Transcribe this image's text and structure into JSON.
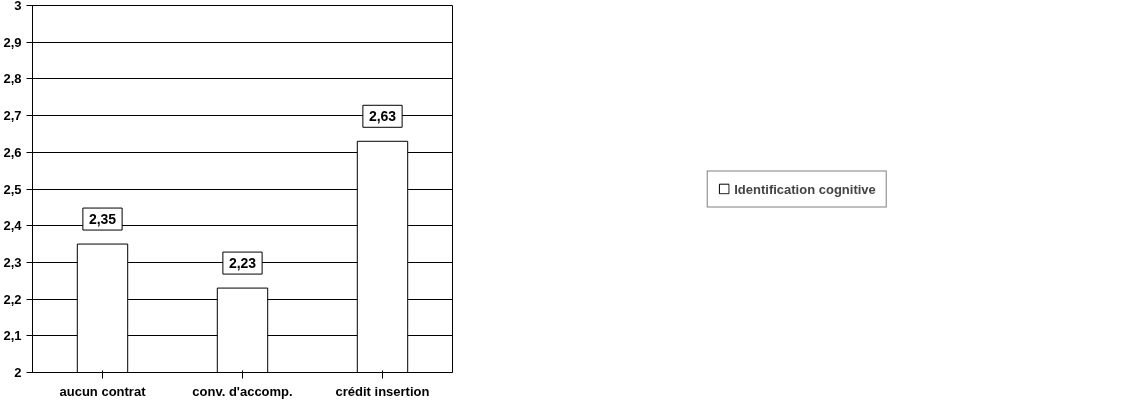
{
  "chart_data": {
    "type": "bar",
    "categories": [
      "aucun contrat",
      "conv. d'accomp.",
      "crédit insertion"
    ],
    "series": [
      {
        "name": "Identification cognitive",
        "color": "#ffffff",
        "values": [
          2.35,
          2.23,
          2.63
        ],
        "value_labels": [
          "2,35",
          "2,23",
          "2,63"
        ]
      }
    ],
    "ylim": [
      2,
      3
    ],
    "yticks": [
      2,
      {
        "value": 2.1,
        "label": "2,1"
      },
      {
        "value": 2.2,
        "label": "2,2"
      },
      {
        "value": 2.3,
        "label": "2,3"
      },
      {
        "value": 2.4,
        "label": "2,4"
      },
      {
        "value": 2.5,
        "label": "2,5"
      },
      {
        "value": 2.6,
        "label": "2,6"
      },
      {
        "value": 2.7,
        "label": "2,7"
      },
      {
        "value": 2.8,
        "label": "2,8"
      },
      {
        "value": 2.9,
        "label": "2,9"
      },
      3
    ],
    "grid": "y",
    "legend": "right"
  }
}
